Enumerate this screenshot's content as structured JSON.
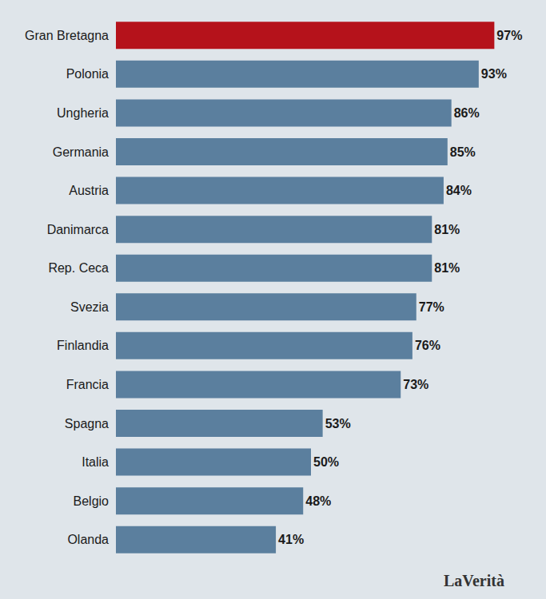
{
  "chart_data": {
    "type": "bar",
    "orientation": "horizontal",
    "categories": [
      "Gran Bretagna",
      "Polonia",
      "Ungheria",
      "Germania",
      "Austria",
      "Danimarca",
      "Rep. Ceca",
      "Svezia",
      "Finlandia",
      "Francia",
      "Spagna",
      "Italia",
      "Belgio",
      "Olanda"
    ],
    "values": [
      97,
      93,
      86,
      85,
      84,
      81,
      81,
      77,
      76,
      73,
      53,
      50,
      48,
      41
    ],
    "value_labels": [
      "97%",
      "93%",
      "86%",
      "85%",
      "84%",
      "81%",
      "81%",
      "77%",
      "76%",
      "73%",
      "53%",
      "50%",
      "48%",
      "41%"
    ],
    "colors": [
      "#b5121b",
      "#5b7f9e",
      "#5b7f9e",
      "#5b7f9e",
      "#5b7f9e",
      "#5b7f9e",
      "#5b7f9e",
      "#5b7f9e",
      "#5b7f9e",
      "#5b7f9e",
      "#5b7f9e",
      "#5b7f9e",
      "#5b7f9e",
      "#5b7f9e"
    ],
    "xlim": [
      0,
      100
    ],
    "data_labels": true,
    "tick_labels": "y",
    "grid": false,
    "source": "LaVerità"
  }
}
